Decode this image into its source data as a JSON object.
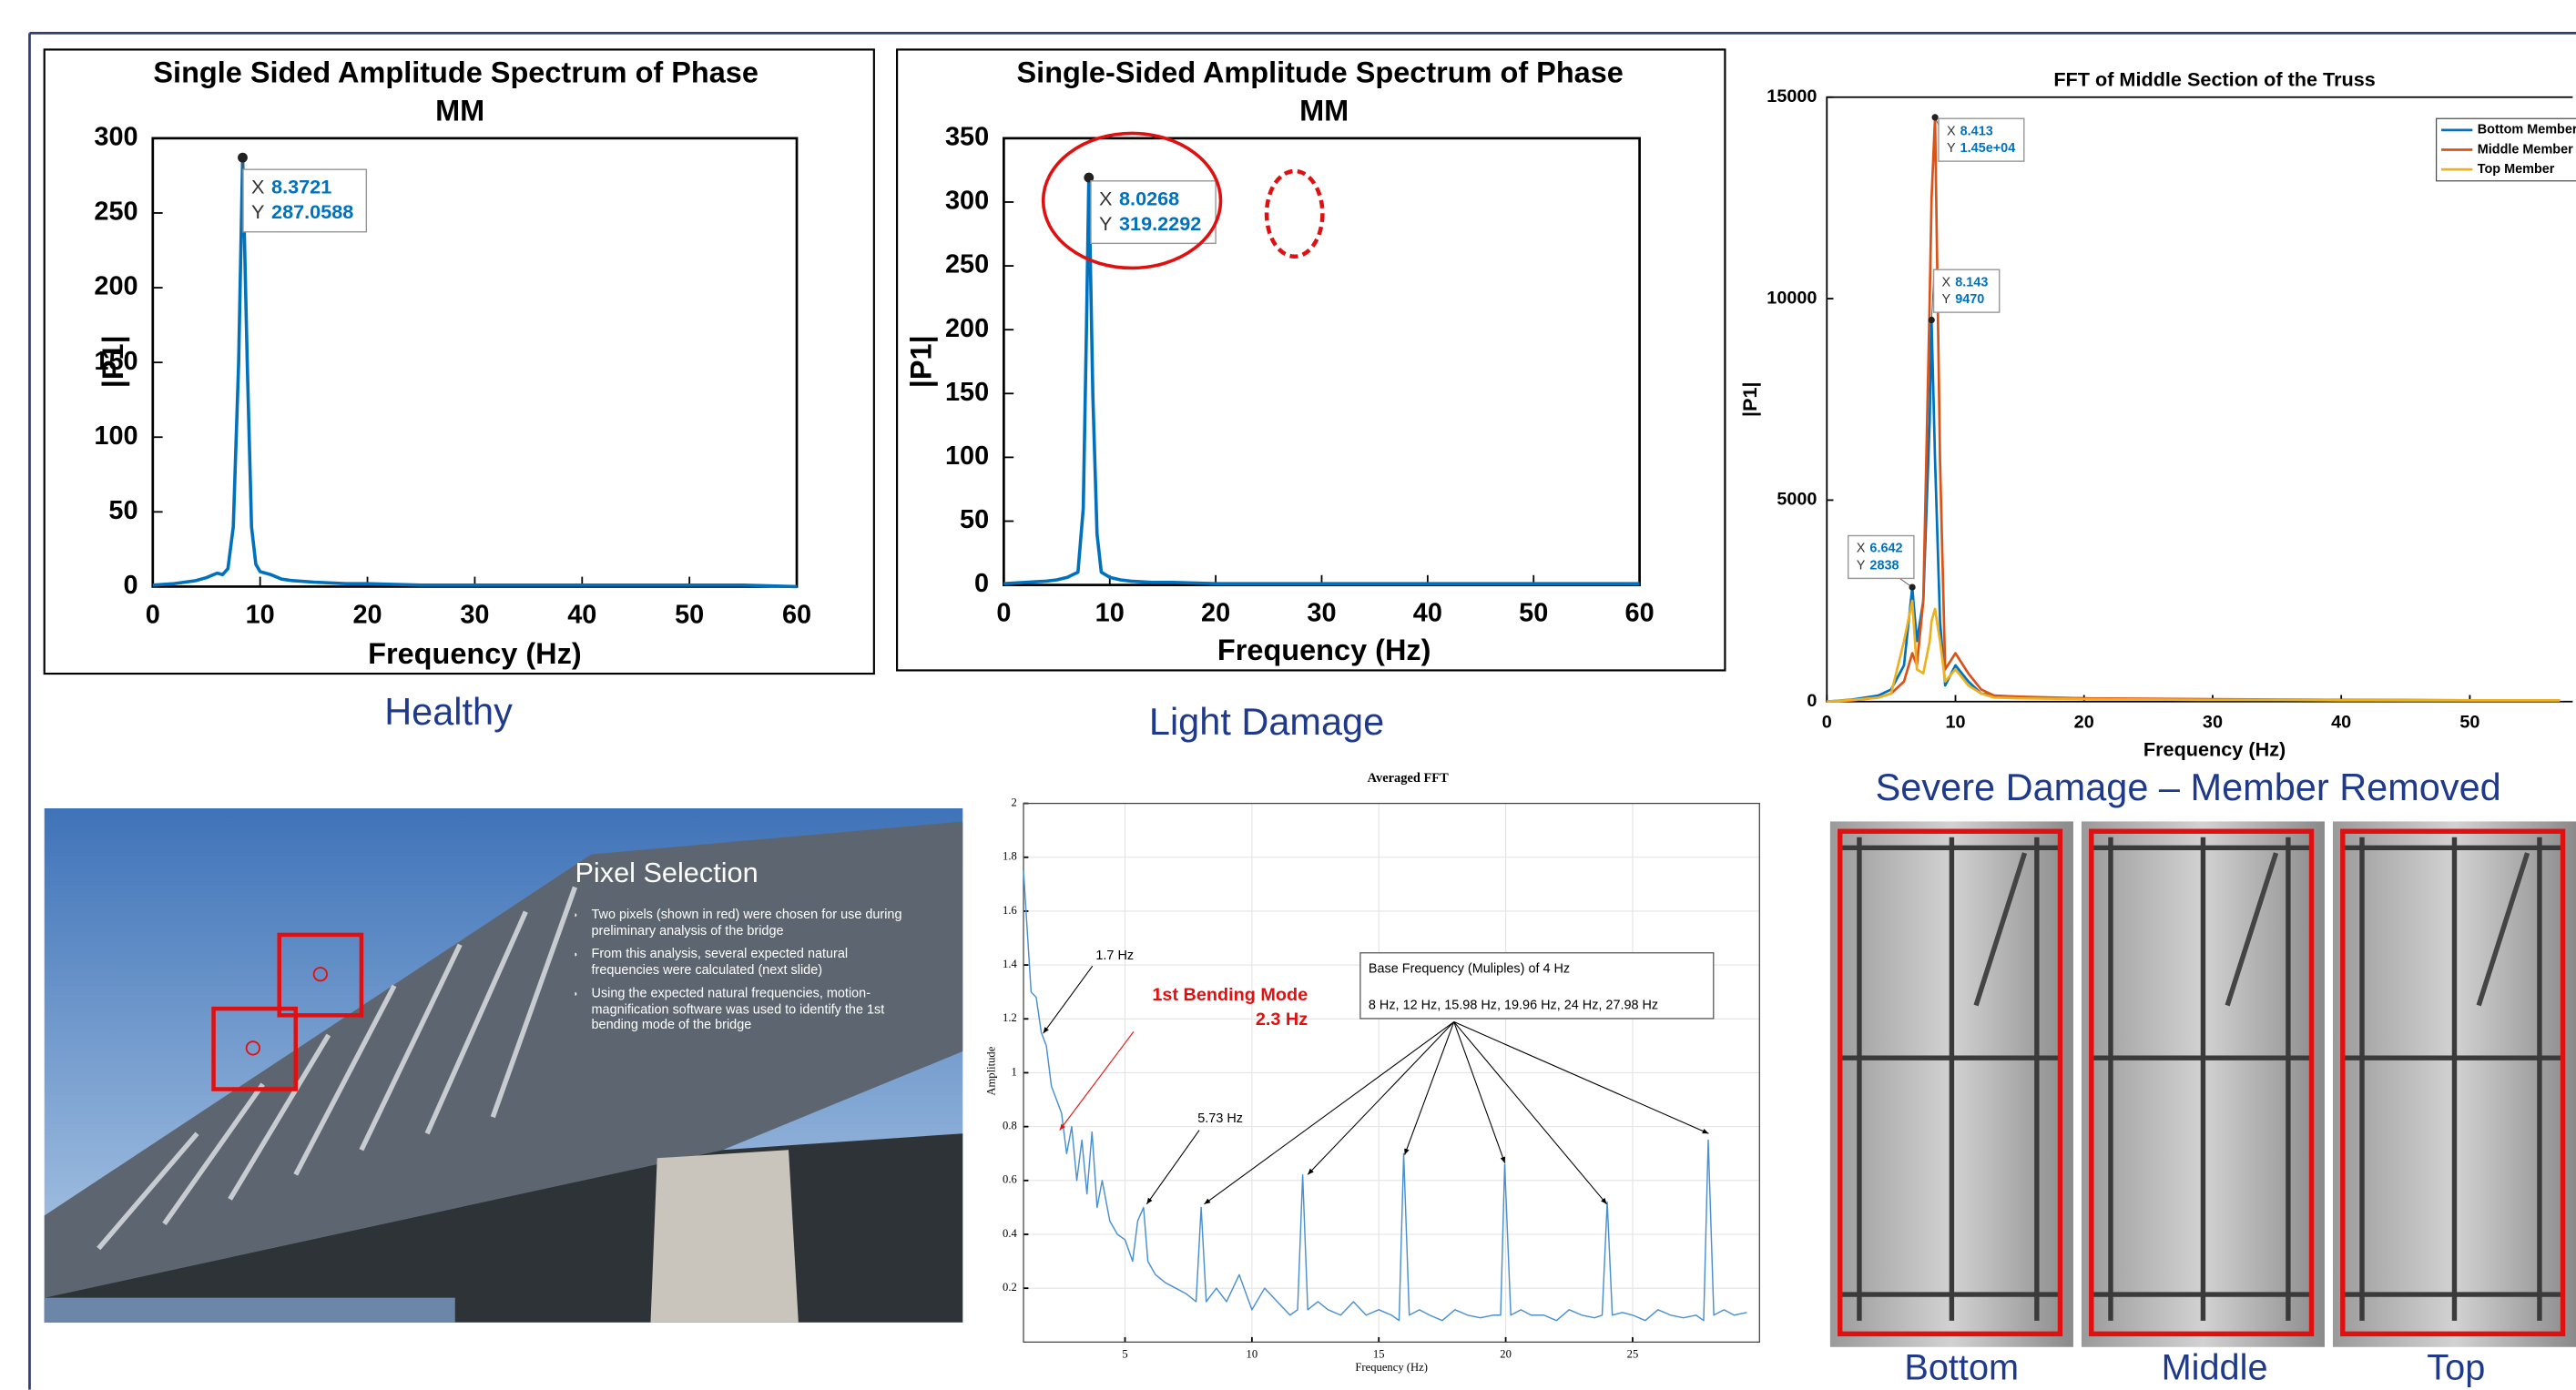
{
  "chart_data": [
    {
      "type": "line",
      "title": "Single Sided Amplitude Spectrum of Phase MM",
      "xlabel": "Frequency (Hz)",
      "ylabel": "|P1|",
      "x": [
        0,
        2,
        4,
        5,
        6,
        6.5,
        7,
        7.5,
        8,
        8.3721,
        8.8,
        9.2,
        9.6,
        10,
        11,
        12,
        13,
        15,
        18,
        20,
        25,
        30,
        35,
        40,
        45,
        50,
        55,
        60
      ],
      "values": [
        1,
        2,
        4,
        6,
        9,
        8,
        12,
        40,
        150,
        287.0588,
        150,
        40,
        15,
        10,
        8,
        5,
        4,
        3,
        2,
        2,
        1,
        1,
        1,
        1,
        1,
        1,
        1,
        0
      ],
      "color": "#0072bd",
      "xlim": [
        0,
        60
      ],
      "xticks": [
        0,
        10,
        20,
        30,
        40,
        50,
        60
      ],
      "ylim": [
        0,
        300
      ],
      "yticks": [
        0,
        50,
        100,
        150,
        200,
        250,
        300
      ],
      "tip_labels": [
        "X",
        "Y"
      ],
      "datatips": [
        {
          "x": 8.3721,
          "y": 287.0588
        }
      ],
      "caption": "Healthy"
    },
    {
      "type": "line",
      "title": "Single-Sided Amplitude Spectrum of Phase MM",
      "xlabel": "Frequency (Hz)",
      "ylabel": "|P1|",
      "x": [
        0,
        2,
        4,
        5,
        6,
        6.5,
        7,
        7.5,
        7.8,
        8.0268,
        8.4,
        8.8,
        9.2,
        10,
        11,
        12,
        14,
        16,
        20,
        25,
        30,
        35,
        40,
        45,
        50,
        55,
        60
      ],
      "values": [
        1,
        2,
        3,
        4,
        6,
        8,
        10,
        60,
        200,
        319.2292,
        150,
        40,
        10,
        6,
        4,
        3,
        2,
        2,
        1,
        1,
        1,
        1,
        1,
        1,
        1,
        1,
        1
      ],
      "color": "#0072bd",
      "xlim": [
        0,
        60
      ],
      "xticks": [
        0,
        10,
        20,
        30,
        40,
        50,
        60
      ],
      "ylim": [
        0,
        350
      ],
      "yticks": [
        0,
        50,
        100,
        150,
        200,
        250,
        300,
        350
      ],
      "tip_labels": [
        "X",
        "Y"
      ],
      "datatips": [
        {
          "x": 8.0268,
          "y": 319.2292
        }
      ],
      "caption": "Light Damage"
    },
    {
      "type": "line",
      "title": "FFT of Middle Section of the Truss",
      "xlabel": "Frequency (Hz)",
      "ylabel": "|P1|",
      "x": [
        0,
        2,
        4,
        5,
        6,
        6.642,
        7,
        7.5,
        8,
        8.143,
        8.413,
        8.8,
        9.2,
        10,
        11,
        12,
        13,
        15,
        20,
        25,
        30,
        35,
        40,
        45,
        50,
        57
      ],
      "series": [
        {
          "name": "Bottom Member",
          "color": "#0072bd",
          "values": [
            0,
            50,
            150,
            300,
            900,
            2838,
            1500,
            2500,
            7000,
            9470,
            6000,
            2000,
            400,
            900,
            500,
            200,
            150,
            100,
            80,
            60,
            50,
            40,
            40,
            30,
            30,
            30
          ]
        },
        {
          "name": "Middle Member",
          "color": "#d95319",
          "values": [
            0,
            30,
            100,
            200,
            500,
            1200,
            900,
            2500,
            10000,
            12500,
            14500,
            6000,
            800,
            1200,
            700,
            300,
            150,
            120,
            80,
            70,
            60,
            50,
            40,
            40,
            30,
            30
          ]
        },
        {
          "name": "Top Member",
          "color": "#edb120",
          "values": [
            0,
            40,
            100,
            200,
            1500,
            2500,
            800,
            700,
            1500,
            2000,
            2300,
            1500,
            500,
            800,
            400,
            200,
            100,
            80,
            60,
            50,
            40,
            40,
            30,
            30,
            30,
            30
          ]
        }
      ],
      "xlim": [
        0,
        58
      ],
      "xticks": [
        0,
        10,
        20,
        30,
        40,
        50
      ],
      "ylim": [
        0,
        15000
      ],
      "yticks": [
        0,
        5000,
        10000,
        15000
      ],
      "legend": "upper right",
      "tip_labels": [
        "X",
        "Y"
      ],
      "datatips": [
        {
          "x": 8.413,
          "y": {
            "value": 14500,
            "label": "1.45e+04"
          }
        },
        {
          "x": 8.143,
          "y": 9470
        },
        {
          "x": 6.642,
          "y": 2838
        }
      ],
      "caption": "Severe Damage – Member Removed"
    },
    {
      "type": "line",
      "title": "Averaged FFT",
      "xlabel": "Frequency (Hz)",
      "ylabel": "Amplitude",
      "x": [
        1,
        1.3,
        1.5,
        1.7,
        1.9,
        2.1,
        2.3,
        2.5,
        2.7,
        2.9,
        3.1,
        3.3,
        3.5,
        3.7,
        3.9,
        4.1,
        4.4,
        4.7,
        5,
        5.3,
        5.5,
        5.73,
        5.9,
        6.2,
        6.6,
        7,
        7.4,
        7.8,
        8,
        8.2,
        8.6,
        9,
        9.5,
        10,
        10.5,
        11,
        11.5,
        11.8,
        12,
        12.2,
        12.6,
        13,
        13.5,
        14,
        14.5,
        15,
        15.5,
        15.8,
        15.98,
        16.2,
        16.6,
        17,
        17.5,
        18,
        18.5,
        19,
        19.5,
        19.8,
        19.96,
        20.2,
        20.6,
        21,
        21.5,
        22,
        22.5,
        23,
        23.5,
        23.8,
        24,
        24.2,
        24.6,
        25,
        25.5,
        26,
        26.5,
        27,
        27.5,
        27.8,
        27.98,
        28.2,
        28.6,
        29,
        29.5
      ],
      "values": [
        1.75,
        1.3,
        1.28,
        1.15,
        1.1,
        0.95,
        0.9,
        0.85,
        0.7,
        0.8,
        0.6,
        0.75,
        0.55,
        0.78,
        0.5,
        0.6,
        0.45,
        0.4,
        0.38,
        0.3,
        0.45,
        0.5,
        0.3,
        0.25,
        0.22,
        0.2,
        0.18,
        0.15,
        0.5,
        0.15,
        0.2,
        0.15,
        0.25,
        0.12,
        0.2,
        0.15,
        0.1,
        0.12,
        0.62,
        0.12,
        0.15,
        0.12,
        0.1,
        0.15,
        0.1,
        0.12,
        0.1,
        0.08,
        0.7,
        0.1,
        0.12,
        0.1,
        0.08,
        0.12,
        0.1,
        0.09,
        0.1,
        0.1,
        0.66,
        0.1,
        0.12,
        0.1,
        0.1,
        0.08,
        0.12,
        0.1,
        0.09,
        0.1,
        0.52,
        0.1,
        0.11,
        0.1,
        0.08,
        0.12,
        0.1,
        0.09,
        0.1,
        0.08,
        0.75,
        0.1,
        0.12,
        0.1,
        0.11
      ],
      "color": "#4a90d0",
      "xlim": [
        1,
        30
      ],
      "xticks": [
        5,
        10,
        15,
        20,
        25
      ],
      "ylim": [
        0,
        2
      ],
      "yticks": [
        0.2,
        0.4,
        0.6,
        0.8,
        1,
        1.2,
        1.4,
        1.6,
        1.8,
        2
      ],
      "grid": true,
      "annotations": [
        "1.7 Hz",
        "5.73 Hz",
        "1st Bending Mode",
        "2.3 Hz"
      ],
      "note_box": [
        "Base Frequency (Muliples) of 4 Hz",
        "8 Hz, 12 Hz, 15.98 Hz, 19.96 Hz, 24 Hz, 27.98 Hz"
      ]
    }
  ],
  "slide": {
    "title": "Pixel Selection",
    "bullets": [
      "Two pixels (shown in red) were chosen for use during preliminary analysis of the bridge",
      "From this analysis, several expected natural frequencies were calculated (next slide)",
      "Using the expected natural frequencies, motion-magnification software was used to identify the 1st bending mode of the bridge"
    ]
  },
  "truss_photos": {
    "labels": [
      "Bottom",
      "Middle",
      "Top"
    ]
  }
}
